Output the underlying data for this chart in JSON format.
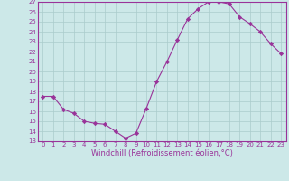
{
  "x": [
    0,
    1,
    2,
    3,
    4,
    5,
    6,
    7,
    8,
    9,
    10,
    11,
    12,
    13,
    14,
    15,
    16,
    17,
    18,
    19,
    20,
    21,
    22,
    23
  ],
  "y": [
    17.5,
    17.5,
    16.2,
    15.8,
    15.0,
    14.8,
    14.7,
    14.0,
    13.3,
    13.8,
    16.3,
    19.0,
    21.0,
    23.2,
    25.3,
    26.3,
    27.0,
    27.0,
    26.8,
    25.5,
    24.8,
    24.0,
    22.8,
    21.8
  ],
  "line_color": "#993399",
  "marker": "D",
  "marker_size": 2.2,
  "bg_color": "#cce8e8",
  "grid_color": "#aacccc",
  "axis_color": "#993399",
  "border_color": "#993399",
  "xlabel": "Windchill (Refroidissement éolien,°C)",
  "ylim": [
    13,
    27
  ],
  "xlim_min": -0.5,
  "xlim_max": 23.5,
  "yticks": [
    13,
    14,
    15,
    16,
    17,
    18,
    19,
    20,
    21,
    22,
    23,
    24,
    25,
    26,
    27
  ],
  "xticks": [
    0,
    1,
    2,
    3,
    4,
    5,
    6,
    7,
    8,
    9,
    10,
    11,
    12,
    13,
    14,
    15,
    16,
    17,
    18,
    19,
    20,
    21,
    22,
    23
  ],
  "tick_fontsize": 5.0,
  "label_fontsize": 6.0
}
